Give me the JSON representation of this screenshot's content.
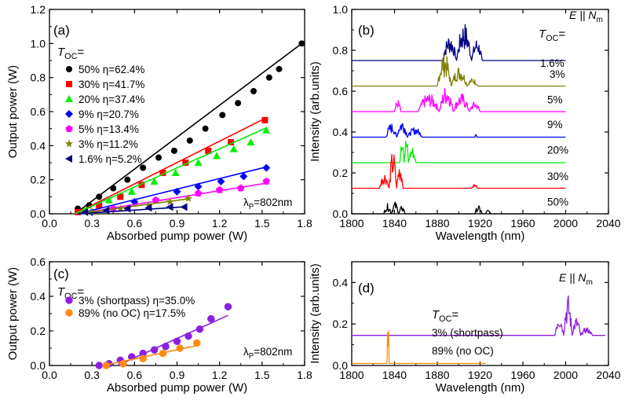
{
  "chart_data": [
    {
      "panel": "(a)",
      "type": "scatter",
      "xlabel": "Absorbed pump power (W)",
      "ylabel": "Output power (W)",
      "xlim": [
        0.0,
        1.8
      ],
      "ylim": [
        0.0,
        1.2
      ],
      "xticks": [
        "0.0",
        "0.3",
        "0.6",
        "0.9",
        "1.2",
        "1.5",
        "1.8"
      ],
      "yticks": [
        "0.0",
        "0.2",
        "0.4",
        "0.6",
        "0.8",
        "1.0",
        "1.2"
      ],
      "legend_title_main": "T",
      "legend_title_sub": "OC",
      "legend_title_tail": "=",
      "annotation_main": "λ",
      "annotation_sub": "P",
      "annotation_tail": "=802nm",
      "series": [
        {
          "name": "50% η=62.4%",
          "color": "#000000",
          "marker": "circle",
          "points": [
            [
              0.2,
              0.03
            ],
            [
              0.28,
              0.05
            ],
            [
              0.35,
              0.1
            ],
            [
              0.45,
              0.15
            ],
            [
              0.55,
              0.2
            ],
            [
              0.66,
              0.27
            ],
            [
              0.77,
              0.33
            ],
            [
              0.88,
              0.37
            ],
            [
              0.99,
              0.43
            ],
            [
              1.1,
              0.5
            ],
            [
              1.22,
              0.58
            ],
            [
              1.33,
              0.65
            ],
            [
              1.44,
              0.72
            ],
            [
              1.55,
              0.8
            ],
            [
              1.62,
              0.85
            ],
            [
              1.78,
              1.0
            ]
          ],
          "fit": [
            [
              0.18,
              0.0
            ],
            [
              1.78,
              1.0
            ]
          ]
        },
        {
          "name": "30% η=41.7%",
          "color": "#ff0000",
          "marker": "square",
          "points": [
            [
              0.2,
              0.01
            ],
            [
              0.35,
              0.05
            ],
            [
              0.5,
              0.1
            ],
            [
              0.65,
              0.17
            ],
            [
              0.8,
              0.24
            ],
            [
              0.96,
              0.3
            ],
            [
              1.12,
              0.37
            ],
            [
              1.28,
              0.42
            ],
            [
              1.52,
              0.55
            ]
          ],
          "fit": [
            [
              0.18,
              0.0
            ],
            [
              1.52,
              0.56
            ]
          ]
        },
        {
          "name": "20% η=37.4%",
          "color": "#00ee00",
          "marker": "triangle-up",
          "points": [
            [
              0.25,
              0.02
            ],
            [
              0.42,
              0.08
            ],
            [
              0.58,
              0.13
            ],
            [
              0.74,
              0.19
            ],
            [
              0.89,
              0.24
            ],
            [
              1.05,
              0.3
            ],
            [
              1.18,
              0.34
            ],
            [
              1.3,
              0.38
            ],
            [
              1.42,
              0.42
            ],
            [
              1.53,
              0.49
            ]
          ],
          "fit": [
            [
              0.18,
              0.0
            ],
            [
              1.53,
              0.505
            ]
          ]
        },
        {
          "name": "9% η=20.7%",
          "color": "#0000ff",
          "marker": "diamond",
          "points": [
            [
              0.3,
              0.01
            ],
            [
              0.6,
              0.07
            ],
            [
              0.9,
              0.13
            ],
            [
              1.05,
              0.16
            ],
            [
              1.21,
              0.19
            ],
            [
              1.37,
              0.22
            ],
            [
              1.53,
              0.27
            ]
          ],
          "fit": [
            [
              0.2,
              0.0
            ],
            [
              1.53,
              0.275
            ]
          ]
        },
        {
          "name": "5% η=13.4%",
          "color": "#ff00ff",
          "marker": "pentagon",
          "points": [
            [
              0.45,
              0.03
            ],
            [
              0.75,
              0.08
            ],
            [
              1.05,
              0.12
            ],
            [
              1.2,
              0.14
            ],
            [
              1.35,
              0.15
            ],
            [
              1.53,
              0.19
            ]
          ],
          "fit": [
            [
              0.2,
              0.0
            ],
            [
              1.53,
              0.18
            ]
          ]
        },
        {
          "name": "3% η=11.2%",
          "color": "#808000",
          "marker": "star",
          "points": [
            [
              0.3,
              0.01
            ],
            [
              0.5,
              0.03
            ],
            [
              0.7,
              0.05
            ],
            [
              0.85,
              0.07
            ],
            [
              0.98,
              0.09
            ]
          ],
          "fit": [
            [
              0.2,
              0.0
            ],
            [
              0.98,
              0.088
            ]
          ]
        },
        {
          "name": "1.6% η=5.2%",
          "color": "#000080",
          "marker": "triangle-left",
          "points": [
            [
              0.25,
              0.01
            ],
            [
              0.4,
              0.02
            ],
            [
              0.55,
              0.03
            ],
            [
              0.7,
              0.035
            ],
            [
              0.85,
              0.04
            ],
            [
              0.95,
              0.04
            ]
          ],
          "fit": [
            [
              0.2,
              0.0
            ],
            [
              0.97,
              0.042
            ]
          ]
        }
      ]
    },
    {
      "panel": "(b)",
      "type": "line",
      "xlabel": "Wavelength (nm)",
      "ylabel": "Intensity (arb.units)",
      "xlim": [
        1800,
        2040
      ],
      "ylim": [
        0.0,
        1.0
      ],
      "xticks": [
        "1800",
        "1840",
        "1880",
        "1920",
        "1960",
        "2000",
        "2040"
      ],
      "yticks": [
        "0.0",
        "0.2",
        "0.4",
        "0.6",
        "0.8",
        "1.0"
      ],
      "line_end": 2000,
      "legend_title_main": "T",
      "legend_title_sub": "OC",
      "legend_title_tail": "=",
      "polarization_main": "E || N",
      "polarization_sub": "m",
      "series": [
        {
          "name": "1.6%",
          "color": "#000080",
          "baseline": 0.75,
          "peaks": [
            [
              1885,
              1898,
              0.13
            ],
            [
              1898,
              1912,
              0.19
            ],
            [
              1912,
              1922,
              0.11
            ]
          ]
        },
        {
          "name": "3%",
          "color": "#808000",
          "baseline": 0.625,
          "peaks": [
            [
              1880,
              1893,
              0.17
            ],
            [
              1893,
              1908,
              0.1
            ],
            [
              1908,
              1918,
              0.04
            ]
          ]
        },
        {
          "name": "5%",
          "color": "#ff00ff",
          "baseline": 0.5,
          "peaks": [
            [
              1840,
              1846,
              0.06
            ],
            [
              1862,
              1882,
              0.09
            ],
            [
              1882,
              1895,
              0.13
            ],
            [
              1895,
              1910,
              0.09
            ],
            [
              1910,
              1920,
              0.05
            ]
          ]
        },
        {
          "name": "9%",
          "color": "#0000ff",
          "baseline": 0.375,
          "peaks": [
            [
              1832,
              1842,
              0.07
            ],
            [
              1842,
              1852,
              0.09
            ],
            [
              1852,
              1866,
              0.05
            ],
            [
              1915,
              1917,
              0.02
            ]
          ]
        },
        {
          "name": "20%",
          "color": "#00ee00",
          "baseline": 0.25,
          "peaks": [
            [
              1845,
              1849,
              0.2
            ],
            [
              1849,
              1853,
              0.13
            ],
            [
              1853,
              1860,
              0.08
            ]
          ]
        },
        {
          "name": "30%",
          "color": "#ff0000",
          "baseline": 0.125,
          "peaks": [
            [
              1826,
              1835,
              0.08
            ],
            [
              1835,
              1842,
              0.19
            ],
            [
              1842,
              1848,
              0.13
            ],
            [
              1912,
              1918,
              0.02
            ]
          ]
        },
        {
          "name": "50%",
          "color": "#000000",
          "baseline": 0.0,
          "peaks": [
            [
              1830,
              1837,
              0.05
            ],
            [
              1837,
              1844,
              0.06
            ],
            [
              1844,
              1850,
              0.04
            ],
            [
              1915,
              1922,
              0.04
            ],
            [
              1925,
              1930,
              0.02
            ]
          ]
        }
      ]
    },
    {
      "panel": "(c)",
      "type": "scatter",
      "xlabel": "Absorbed pump power (W)",
      "ylabel": "Output power (W)",
      "xlim": [
        0.0,
        1.8
      ],
      "ylim": [
        0.0,
        0.6
      ],
      "xticks": [
        "0.0",
        "0.3",
        "0.6",
        "0.9",
        "1.2",
        "1.5",
        "1.8"
      ],
      "yticks": [
        "0.0",
        "0.2",
        "0.4",
        "0.6"
      ],
      "legend_title_main": "T",
      "legend_title_sub": "OC",
      "legend_title_tail": "=",
      "annotation_main": "λ",
      "annotation_sub": "P",
      "annotation_tail": "=802nm",
      "series": [
        {
          "name": "3% (shortpass) η=35.0%",
          "color": "#8b1fe0",
          "marker": "ball",
          "points": [
            [
              0.35,
              0.0
            ],
            [
              0.42,
              0.01
            ],
            [
              0.5,
              0.03
            ],
            [
              0.58,
              0.05
            ],
            [
              0.66,
              0.07
            ],
            [
              0.74,
              0.09
            ],
            [
              0.82,
              0.11
            ],
            [
              0.9,
              0.14
            ],
            [
              0.98,
              0.17
            ],
            [
              1.06,
              0.21
            ],
            [
              1.14,
              0.27
            ],
            [
              1.26,
              0.34
            ]
          ],
          "fit": [
            [
              0.48,
              0.0
            ],
            [
              1.26,
              0.29
            ]
          ]
        },
        {
          "name": "89% (no OC) η=17.5%",
          "color": "#ff8c10",
          "marker": "ball",
          "points": [
            [
              0.4,
              0.0
            ],
            [
              0.52,
              0.01
            ],
            [
              0.66,
              0.04
            ],
            [
              0.8,
              0.07
            ],
            [
              0.92,
              0.1
            ],
            [
              1.04,
              0.13
            ]
          ],
          "fit": [
            [
              0.38,
              0.0
            ],
            [
              1.04,
              0.115
            ]
          ]
        }
      ]
    },
    {
      "panel": "(d)",
      "type": "line",
      "xlabel": "Wavelength (nm)",
      "ylabel": "Intensity (arb.units)",
      "xlim": [
        1800,
        2040
      ],
      "ylim": [
        0.0,
        0.5
      ],
      "xticks": [
        "1800",
        "1840",
        "1880",
        "1920",
        "1960",
        "2000",
        "2040"
      ],
      "yticks": [
        "0.0",
        "0.2",
        "0.4"
      ],
      "legend_title_main": "T",
      "legend_title_sub": "OC",
      "legend_title_tail": "=",
      "polarization_main": "E || N",
      "polarization_sub": "m",
      "series": [
        {
          "name": "3% (shortpass)",
          "color": "#8b1fe0",
          "baseline": 0.145,
          "line_start": 1800,
          "line_end": 2037,
          "peaks": [
            [
              1990,
              1998,
              0.12
            ],
            [
              1998,
              2006,
              0.2
            ],
            [
              2006,
              2014,
              0.09
            ],
            [
              2014,
              2025,
              0.04
            ]
          ]
        },
        {
          "name": "89% (no OC)",
          "color": "#ff8c10",
          "baseline": 0.01,
          "line_start": 1800,
          "line_end": 1925,
          "peaks": [
            [
              1833,
              1835,
              0.26
            ]
          ]
        }
      ]
    }
  ]
}
